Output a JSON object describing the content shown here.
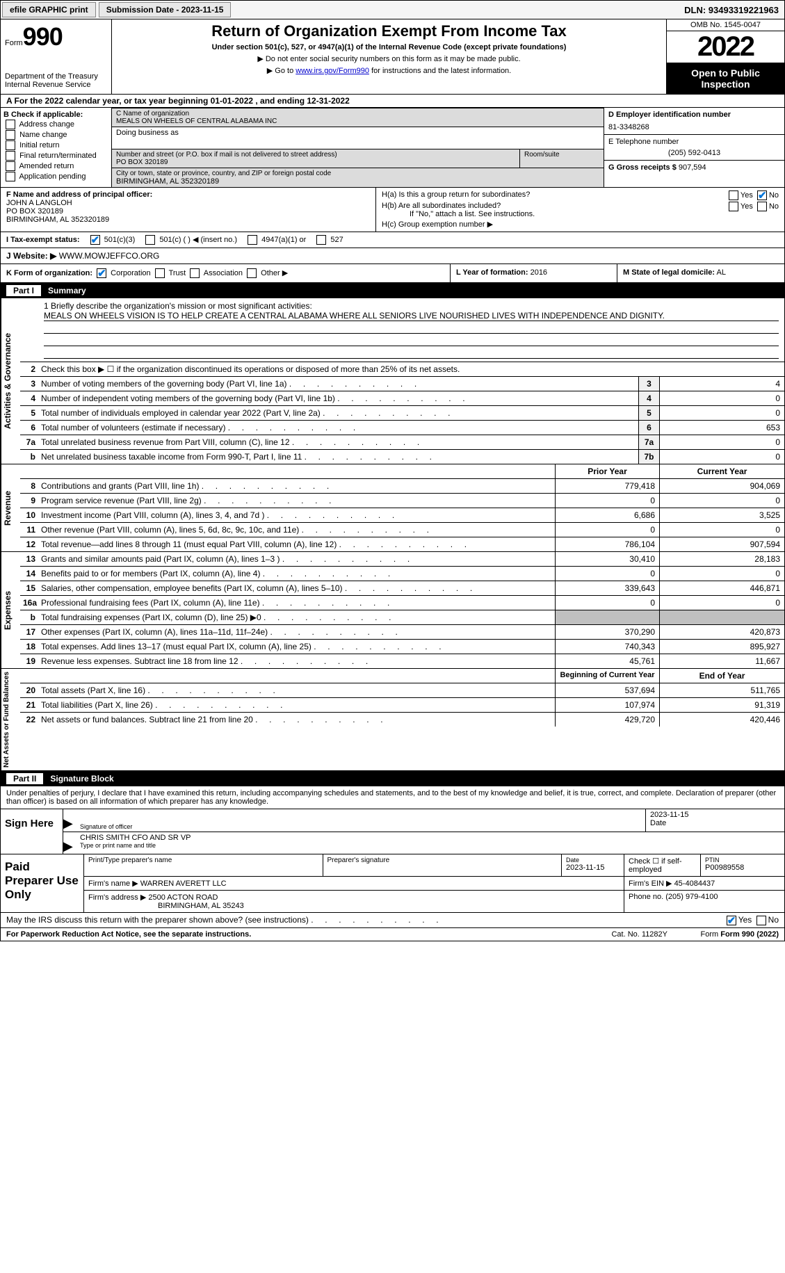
{
  "topbar": {
    "print_btn": "efile GRAPHIC print",
    "submission_label": "Submission Date - 2023-11-15",
    "dln": "DLN: 93493319221963"
  },
  "header": {
    "form_word": "Form",
    "form_no": "990",
    "dept": "Department of the Treasury",
    "irs": "Internal Revenue Service",
    "title": "Return of Organization Exempt From Income Tax",
    "subtitle": "Under section 501(c), 527, or 4947(a)(1) of the Internal Revenue Code (except private foundations)",
    "note1": "▶ Do not enter social security numbers on this form as it may be made public.",
    "note2_pre": "▶ Go to ",
    "note2_link": "www.irs.gov/Form990",
    "note2_post": " for instructions and the latest information.",
    "omb": "OMB No. 1545-0047",
    "year": "2022",
    "open": "Open to Public Inspection"
  },
  "calendar": "A For the 2022 calendar year, or tax year beginning 01-01-2022    , and ending 12-31-2022",
  "boxB": {
    "title": "B Check if applicable:",
    "opts": [
      "Address change",
      "Name change",
      "Initial return",
      "Final return/terminated",
      "Amended return",
      "Application pending"
    ]
  },
  "boxC": {
    "name_label": "C Name of organization",
    "name": "MEALS ON WHEELS OF CENTRAL ALABAMA INC",
    "dba_label": "Doing business as",
    "addr_label": "Number and street (or P.O. box if mail is not delivered to street address)",
    "room_label": "Room/suite",
    "addr": "PO BOX 320189",
    "city_label": "City or town, state or province, country, and ZIP or foreign postal code",
    "city": "BIRMINGHAM, AL  352320189"
  },
  "boxD": {
    "ein_label": "D Employer identification number",
    "ein": "81-3348268",
    "phone_label": "E Telephone number",
    "phone": "(205) 592-0413",
    "gross_label": "G Gross receipts $",
    "gross": "907,594"
  },
  "boxF": {
    "label": "F  Name and address of principal officer:",
    "name": "JOHN A LANGLOH",
    "addr1": "PO BOX 320189",
    "addr2": "BIRMINGHAM, AL  352320189"
  },
  "boxH": {
    "ha": "H(a)  Is this a group return for subordinates?",
    "hb": "H(b)  Are all subordinates included?",
    "hb_note": "If \"No,\" attach a list. See instructions.",
    "hc": "H(c)  Group exemption number ▶",
    "yes": "Yes",
    "no": "No"
  },
  "status": {
    "label": "I   Tax-exempt status:",
    "o1": "501(c)(3)",
    "o2": "501(c) (  ) ◀ (insert no.)",
    "o3": "4947(a)(1) or",
    "o4": "527"
  },
  "website": {
    "label": "J  Website: ▶",
    "url": "WWW.MOWJEFFCO.ORG"
  },
  "klm": {
    "k": "K Form of organization:",
    "k_opts": [
      "Corporation",
      "Trust",
      "Association",
      "Other ▶"
    ],
    "l_label": "L Year of formation:",
    "l_val": "2016",
    "m_label": "M State of legal domicile:",
    "m_val": "AL"
  },
  "part1": {
    "tab": "Part I",
    "title": "Summary"
  },
  "mission": {
    "q": "1   Briefly describe the organization's mission or most significant activities:",
    "text": "MEALS ON WHEELS VISION IS TO HELP CREATE A CENTRAL ALABAMA WHERE ALL SENIORS LIVE NOURISHED LIVES WITH INDEPENDENCE AND DIGNITY."
  },
  "line2": "Check this box ▶ ☐  if the organization discontinued its operations or disposed of more than 25% of its net assets.",
  "gov_rows": [
    {
      "n": "3",
      "d": "Number of voting members of the governing body (Part VI, line 1a)",
      "box": "3",
      "v": "4"
    },
    {
      "n": "4",
      "d": "Number of independent voting members of the governing body (Part VI, line 1b)",
      "box": "4",
      "v": "0"
    },
    {
      "n": "5",
      "d": "Total number of individuals employed in calendar year 2022 (Part V, line 2a)",
      "box": "5",
      "v": "0"
    },
    {
      "n": "6",
      "d": "Total number of volunteers (estimate if necessary)",
      "box": "6",
      "v": "653"
    },
    {
      "n": "7a",
      "d": "Total unrelated business revenue from Part VIII, column (C), line 12",
      "box": "7a",
      "v": "0"
    },
    {
      "n": "b",
      "d": "Net unrelated business taxable income from Form 990-T, Part I, line 11",
      "box": "7b",
      "v": "0"
    }
  ],
  "rev_hdr": {
    "py": "Prior Year",
    "cy": "Current Year"
  },
  "rev_rows": [
    {
      "n": "8",
      "d": "Contributions and grants (Part VIII, line 1h)",
      "py": "779,418",
      "cy": "904,069"
    },
    {
      "n": "9",
      "d": "Program service revenue (Part VIII, line 2g)",
      "py": "0",
      "cy": "0"
    },
    {
      "n": "10",
      "d": "Investment income (Part VIII, column (A), lines 3, 4, and 7d )",
      "py": "6,686",
      "cy": "3,525"
    },
    {
      "n": "11",
      "d": "Other revenue (Part VIII, column (A), lines 5, 6d, 8c, 9c, 10c, and 11e)",
      "py": "0",
      "cy": "0"
    },
    {
      "n": "12",
      "d": "Total revenue—add lines 8 through 11 (must equal Part VIII, column (A), line 12)",
      "py": "786,104",
      "cy": "907,594"
    }
  ],
  "exp_rows": [
    {
      "n": "13",
      "d": "Grants and similar amounts paid (Part IX, column (A), lines 1–3 )",
      "py": "30,410",
      "cy": "28,183"
    },
    {
      "n": "14",
      "d": "Benefits paid to or for members (Part IX, column (A), line 4)",
      "py": "0",
      "cy": "0"
    },
    {
      "n": "15",
      "d": "Salaries, other compensation, employee benefits (Part IX, column (A), lines 5–10)",
      "py": "339,643",
      "cy": "446,871"
    },
    {
      "n": "16a",
      "d": "Professional fundraising fees (Part IX, column (A), line 11e)",
      "py": "0",
      "cy": "0"
    },
    {
      "n": "b",
      "d": "Total fundraising expenses (Part IX, column (D), line 25) ▶0",
      "py": "",
      "cy": "",
      "shade": true
    },
    {
      "n": "17",
      "d": "Other expenses (Part IX, column (A), lines 11a–11d, 11f–24e)",
      "py": "370,290",
      "cy": "420,873"
    },
    {
      "n": "18",
      "d": "Total expenses. Add lines 13–17 (must equal Part IX, column (A), line 25)",
      "py": "740,343",
      "cy": "895,927"
    },
    {
      "n": "19",
      "d": "Revenue less expenses. Subtract line 18 from line 12",
      "py": "45,761",
      "cy": "11,667"
    }
  ],
  "na_hdr": {
    "py": "Beginning of Current Year",
    "cy": "End of Year"
  },
  "na_rows": [
    {
      "n": "20",
      "d": "Total assets (Part X, line 16)",
      "py": "537,694",
      "cy": "511,765"
    },
    {
      "n": "21",
      "d": "Total liabilities (Part X, line 26)",
      "py": "107,974",
      "cy": "91,319"
    },
    {
      "n": "22",
      "d": "Net assets or fund balances. Subtract line 21 from line 20",
      "py": "429,720",
      "cy": "420,446"
    }
  ],
  "part2": {
    "tab": "Part II",
    "title": "Signature Block"
  },
  "sig": {
    "intro": "Under penalties of perjury, I declare that I have examined this return, including accompanying schedules and statements, and to the best of my knowledge and belief, it is true, correct, and complete. Declaration of preparer (other than officer) is based on all information of which preparer has any knowledge.",
    "sign_here": "Sign Here",
    "sig_of_officer": "Signature of officer",
    "date": "2023-11-15",
    "date_lbl": "Date",
    "name": "CHRIS SMITH CFO AND SR VP",
    "name_lbl": "Type or print name and title"
  },
  "prep": {
    "label": "Paid Preparer Use Only",
    "h1": "Print/Type preparer's name",
    "h2": "Preparer's signature",
    "h3_lbl": "Date",
    "h3": "2023-11-15",
    "h4": "Check ☐ if self-employed",
    "h5_lbl": "PTIN",
    "h5": "P00989558",
    "firm_name_lbl": "Firm's name      ▶",
    "firm_name": "WARREN AVERETT LLC",
    "firm_ein_lbl": "Firm's EIN ▶",
    "firm_ein": "45-4084437",
    "firm_addr_lbl": "Firm's address ▶",
    "firm_addr1": "2500 ACTON ROAD",
    "firm_addr2": "BIRMINGHAM, AL  35243",
    "phone_lbl": "Phone no.",
    "phone": "(205) 979-4100"
  },
  "discuss": {
    "q": "May the IRS discuss this return with the preparer shown above? (see instructions)",
    "yes": "Yes",
    "no": "No"
  },
  "footer": {
    "pra": "For Paperwork Reduction Act Notice, see the separate instructions.",
    "cat": "Cat. No. 11282Y",
    "form": "Form 990 (2022)"
  },
  "labels": {
    "vlabel_gov": "Activities & Governance",
    "vlabel_rev": "Revenue",
    "vlabel_exp": "Expenses",
    "vlabel_na": "Net Assets or Fund Balances"
  }
}
